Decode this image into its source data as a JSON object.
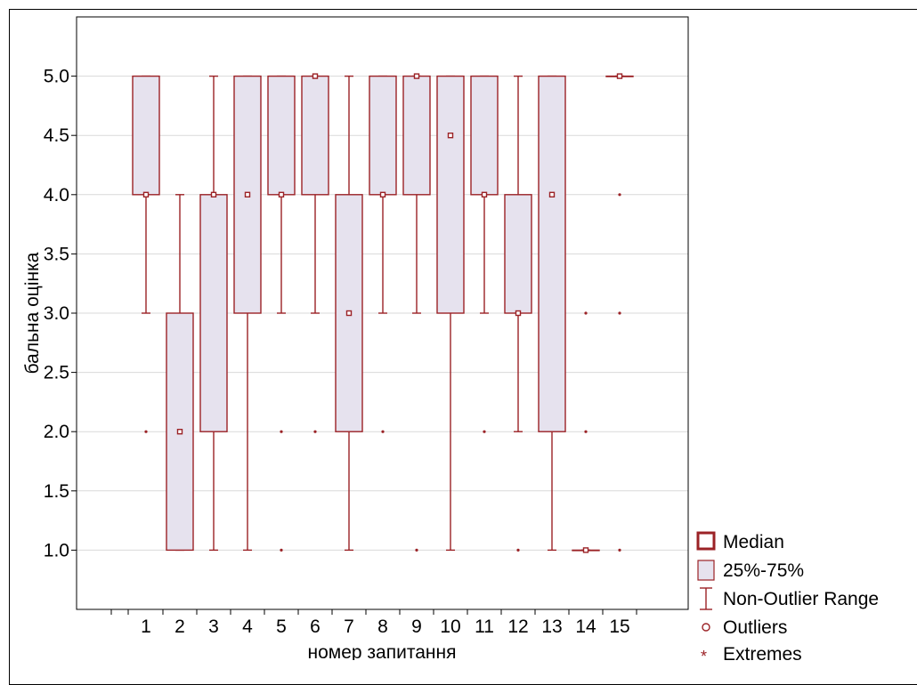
{
  "chart_data": {
    "type": "box",
    "xlabel": "номер запитання",
    "ylabel": "бальна оцінка",
    "ylim": [
      0.5,
      5.5
    ],
    "yticks": [
      "1.0",
      "1.5",
      "2.0",
      "2.5",
      "3.0",
      "3.5",
      "4.0",
      "4.5",
      "5.0"
    ],
    "grid": true,
    "legend_position": "bottom-right",
    "categories": [
      "1",
      "2",
      "3",
      "4",
      "5",
      "6",
      "7",
      "8",
      "9",
      "10",
      "11",
      "12",
      "13",
      "14",
      "15"
    ],
    "boxes": [
      {
        "median": 4.0,
        "q1": 4.0,
        "q3": 5.0,
        "whisker_low": 3.0,
        "whisker_high": 5.0,
        "outliers": [
          2.0
        ]
      },
      {
        "median": 2.0,
        "q1": 1.0,
        "q3": 3.0,
        "whisker_low": 1.0,
        "whisker_high": 4.0,
        "outliers": []
      },
      {
        "median": 4.0,
        "q1": 2.0,
        "q3": 4.0,
        "whisker_low": 1.0,
        "whisker_high": 5.0,
        "outliers": []
      },
      {
        "median": 4.0,
        "q1": 3.0,
        "q3": 5.0,
        "whisker_low": 1.0,
        "whisker_high": 5.0,
        "outliers": []
      },
      {
        "median": 4.0,
        "q1": 4.0,
        "q3": 5.0,
        "whisker_low": 3.0,
        "whisker_high": 5.0,
        "outliers": [
          2.0,
          1.0
        ]
      },
      {
        "median": 5.0,
        "q1": 4.0,
        "q3": 5.0,
        "whisker_low": 3.0,
        "whisker_high": 5.0,
        "outliers": [
          2.0
        ]
      },
      {
        "median": 3.0,
        "q1": 2.0,
        "q3": 4.0,
        "whisker_low": 1.0,
        "whisker_high": 5.0,
        "outliers": []
      },
      {
        "median": 4.0,
        "q1": 4.0,
        "q3": 5.0,
        "whisker_low": 3.0,
        "whisker_high": 5.0,
        "outliers": [
          2.0
        ]
      },
      {
        "median": 5.0,
        "q1": 4.0,
        "q3": 5.0,
        "whisker_low": 3.0,
        "whisker_high": 5.0,
        "outliers": [
          1.0
        ]
      },
      {
        "median": 4.5,
        "q1": 3.0,
        "q3": 5.0,
        "whisker_low": 1.0,
        "whisker_high": 5.0,
        "outliers": []
      },
      {
        "median": 4.0,
        "q1": 4.0,
        "q3": 5.0,
        "whisker_low": 3.0,
        "whisker_high": 5.0,
        "outliers": [
          2.0
        ]
      },
      {
        "median": 3.0,
        "q1": 3.0,
        "q3": 4.0,
        "whisker_low": 2.0,
        "whisker_high": 5.0,
        "outliers": [
          1.0
        ]
      },
      {
        "median": 4.0,
        "q1": 2.0,
        "q3": 5.0,
        "whisker_low": 1.0,
        "whisker_high": 5.0,
        "outliers": []
      },
      {
        "median": 1.0,
        "q1": 1.0,
        "q3": 1.0,
        "whisker_low": 1.0,
        "whisker_high": 1.0,
        "outliers": [
          3.0,
          2.0
        ]
      },
      {
        "median": 5.0,
        "q1": 5.0,
        "q3": 5.0,
        "whisker_low": 5.0,
        "whisker_high": 5.0,
        "outliers": [
          4.0,
          3.0,
          1.0
        ]
      }
    ],
    "colors": {
      "stroke": "#9b2226",
      "box_fill": "#e6e2ee",
      "grid": "#d9d9d9"
    },
    "legend": {
      "median": "Median",
      "box": "25%-75%",
      "range": "Non-Outlier Range",
      "outliers": "Outliers",
      "extremes": "Extremes"
    }
  }
}
